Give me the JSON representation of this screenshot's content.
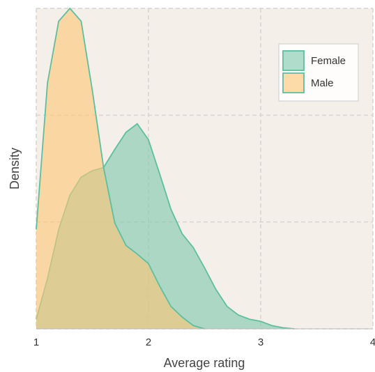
{
  "chart_data": {
    "type": "density",
    "x_label": "Average rating",
    "y_label": "Density",
    "xlim": [
      1,
      4
    ],
    "xticks": [
      1,
      2,
      3,
      4
    ],
    "ylim": [
      0,
      3
    ],
    "yticks": [
      0,
      1,
      2,
      3
    ],
    "grid": true,
    "background": "#f4efe9",
    "edge_color": "#5cbf9f",
    "legend": "upper right",
    "series": [
      {
        "name": "Female",
        "color": "#7fc8ad",
        "x": [
          1.0,
          1.1,
          1.2,
          1.3,
          1.4,
          1.5,
          1.6,
          1.7,
          1.8,
          1.9,
          2.0,
          2.1,
          2.2,
          2.3,
          2.4,
          2.5,
          2.6,
          2.7,
          2.8,
          2.9,
          3.0,
          3.1,
          3.2,
          3.3
        ],
        "values": [
          0.09,
          0.47,
          0.93,
          1.25,
          1.42,
          1.48,
          1.51,
          1.68,
          1.84,
          1.92,
          1.77,
          1.45,
          1.12,
          0.89,
          0.76,
          0.57,
          0.37,
          0.21,
          0.13,
          0.09,
          0.07,
          0.03,
          0.01,
          0
        ]
      },
      {
        "name": "Male",
        "color": "#fbc676",
        "x": [
          1.0,
          1.1,
          1.2,
          1.3,
          1.4,
          1.5,
          1.6,
          1.7,
          1.8,
          1.9,
          2.0,
          2.1,
          2.2,
          2.3,
          2.4,
          2.5
        ],
        "values": [
          0.93,
          2.3,
          2.88,
          3.0,
          2.88,
          2.23,
          1.51,
          0.99,
          0.78,
          0.7,
          0.61,
          0.4,
          0.21,
          0.11,
          0.03,
          0
        ]
      }
    ]
  }
}
